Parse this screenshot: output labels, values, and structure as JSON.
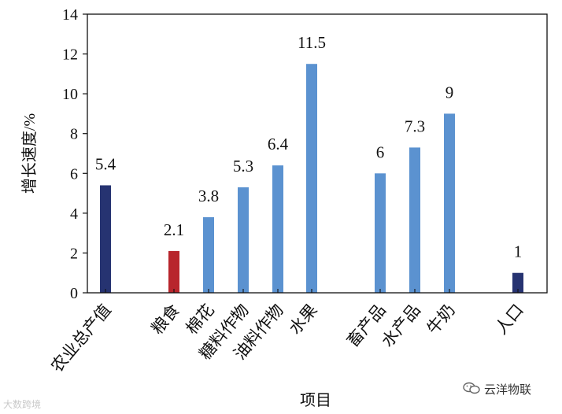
{
  "chart_data": {
    "type": "bar",
    "categories": [
      "农业总产值",
      "粮食",
      "棉花",
      "糖料作物",
      "油料作物",
      "水果",
      "畜产品",
      "水产品",
      "牛奶",
      "人口"
    ],
    "values": [
      5.4,
      2.1,
      3.8,
      5.3,
      6.4,
      11.5,
      6,
      7.3,
      9,
      1
    ],
    "data_labels": [
      "5.4",
      "2.1",
      "3.8",
      "5.3",
      "6.4",
      "11.5",
      "6",
      "7.3",
      "9",
      "1"
    ],
    "bar_colors": [
      "#263371",
      "#b8252c",
      "#5b92d0",
      "#5b92d0",
      "#5b92d0",
      "#5b92d0",
      "#5b92d0",
      "#5b92d0",
      "#5b92d0",
      "#263371"
    ],
    "xlabel": "项目",
    "ylabel": "增长速度/%",
    "ylim": [
      0,
      14
    ],
    "yticks": [
      0,
      2,
      4,
      6,
      8,
      10,
      12,
      14
    ],
    "grid": false,
    "legend": "none"
  },
  "watermarks": {
    "left": "大数跨境",
    "right": "云洋物联",
    "right_icon": "wechat-icon"
  }
}
